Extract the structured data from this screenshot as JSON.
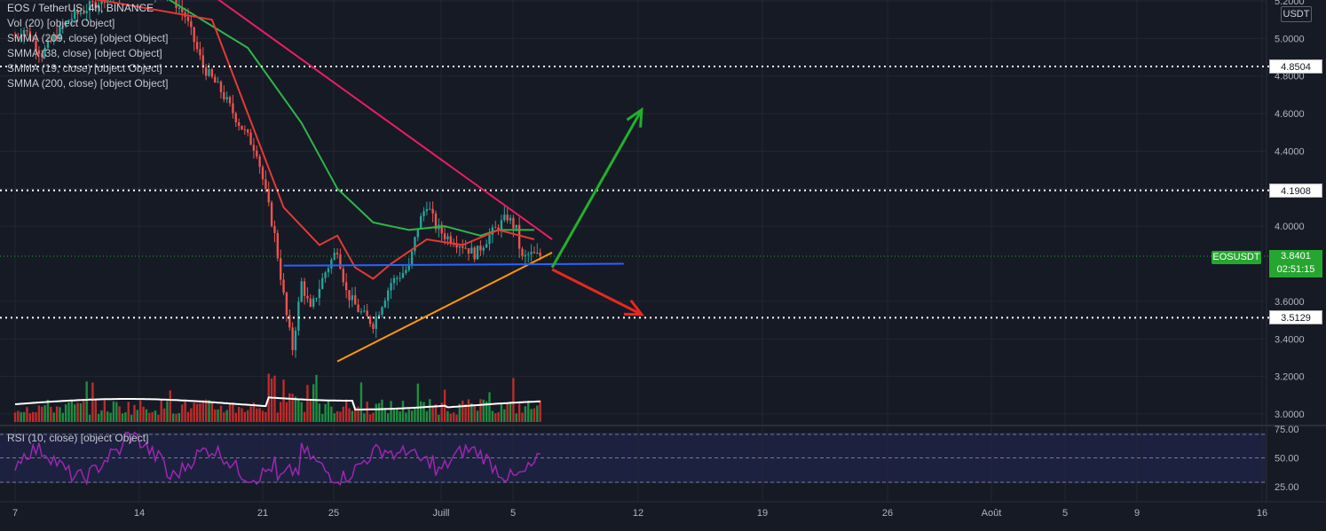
{
  "legend": {
    "title": "EOS / TetherUS, 4h, BINANCE",
    "lines": [
      "Vol (20) [object Object]",
      "SMMA (209, close) [object Object]",
      "SMMA (38, close) [object Object]",
      "SMMA (19, close) [object Object]",
      "SMMA (200, close) [object Object]"
    ],
    "rsi": "RSI (10, close) [object Object]"
  },
  "price_axis": {
    "unit": "USDT",
    "ticks": [
      "5.2000",
      "5.0000",
      "4.8000",
      "4.6000",
      "4.4000",
      "4.2000",
      "4.0000",
      "3.6000",
      "3.4000",
      "3.2000",
      "3.0000"
    ]
  },
  "rsi_axis": {
    "ticks": [
      "75.00",
      "50.00",
      "25.00"
    ]
  },
  "time_axis": {
    "labels": [
      "7",
      "14",
      "21",
      "25",
      "Juill",
      "5",
      "12",
      "19",
      "26",
      "Août",
      "5",
      "9",
      "16"
    ]
  },
  "current": {
    "symbol": "EOSUSDT",
    "price": "3.8401",
    "countdown": "02:51:15"
  },
  "levels": [
    "4.8504",
    "4.1908",
    "3.5129"
  ],
  "colors": {
    "bg": "#161a25",
    "grid": "#232733",
    "up": "#26a69a",
    "down": "#ef5350",
    "vol_up": "#1f9c44",
    "vol_down": "#d12f2b",
    "smma_green": "#2fb54a",
    "smma_red": "#e53935",
    "blue_line": "#2962ff",
    "pink_trend": "#e91e63",
    "orange_trend": "#ff9800",
    "arrow_up": "#22b02c",
    "arrow_down": "#e8281e",
    "rsi": "#9c27b0",
    "price_tag": "#26a630"
  },
  "chart_data": {
    "type": "candlestick",
    "symbol": "EOS / TetherUS",
    "interval": "4h",
    "exchange": "BINANCE",
    "ylim": [
      2.95,
      5.25
    ],
    "last_price": 3.8401,
    "horizontal_levels": [
      4.8504,
      4.1908,
      3.5129
    ],
    "smma_red_points": [
      [
        "Jun 6",
        5.3
      ],
      [
        "Jun 18",
        5.1
      ],
      [
        "Jun 20",
        4.6
      ],
      [
        "Jun 22",
        4.1
      ],
      [
        "Jun 24",
        3.9
      ],
      [
        "Jun 25",
        3.95
      ],
      [
        "Jun 26",
        3.78
      ],
      [
        "Jun 27",
        3.72
      ],
      [
        "Jun 28",
        3.8
      ],
      [
        "Jun 30",
        3.93
      ],
      [
        "Jul 2",
        3.9
      ],
      [
        "Jul 4",
        3.98
      ],
      [
        "Jul 6",
        3.93
      ]
    ],
    "smma_green_points": [
      [
        "Jun 14",
        5.3
      ],
      [
        "Jun 20",
        4.95
      ],
      [
        "Jun 23",
        4.55
      ],
      [
        "Jun 25",
        4.2
      ],
      [
        "Jun 27",
        4.02
      ],
      [
        "Jun 29",
        3.98
      ],
      [
        "Jul 1",
        4.0
      ],
      [
        "Jul 3",
        3.95
      ],
      [
        "Jul 4",
        3.98
      ],
      [
        "Jul 6",
        3.98
      ]
    ],
    "trend_lines": [
      {
        "from": [
          "Jun 17",
          5.3
        ],
        "to": [
          "Jul 7",
          3.93
        ]
      },
      {
        "from": [
          "Jun 25",
          3.28
        ],
        "to": [
          "Jul 7",
          3.86
        ]
      },
      {
        "from": [
          "Jun 22",
          3.79
        ],
        "to": [
          "Jul 11",
          3.8
        ]
      }
    ],
    "projection_arrows": [
      {
        "direction": "up",
        "from": [
          "Jul 7",
          3.78
        ],
        "to": [
          "Jul 12",
          4.62
        ]
      },
      {
        "direction": "down",
        "from": [
          "Jul 7",
          3.77
        ],
        "to": [
          "Jul 12",
          3.53
        ]
      }
    ],
    "rsi": {
      "length": 10,
      "levels": [
        25,
        50,
        75
      ],
      "range_shown": [
        18,
        72
      ]
    }
  }
}
